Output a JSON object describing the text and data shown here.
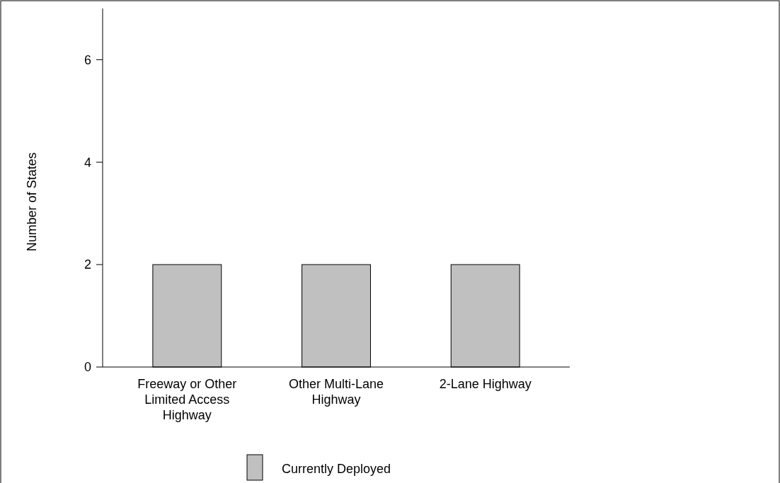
{
  "chart_data": {
    "type": "bar",
    "ylabel": "Number of States",
    "categories": [
      "Freeway or Other Limited Access Highway",
      "Other Multi-Lane Highway",
      "2-Lane Highway"
    ],
    "series": [
      {
        "name": "Currently Deployed",
        "color": "#c0c0c0",
        "values": [
          2,
          2,
          2
        ]
      }
    ],
    "ylim": [
      0,
      7
    ],
    "yticks": [
      0,
      2,
      4,
      6
    ],
    "grid": false,
    "legend": "bottom"
  }
}
